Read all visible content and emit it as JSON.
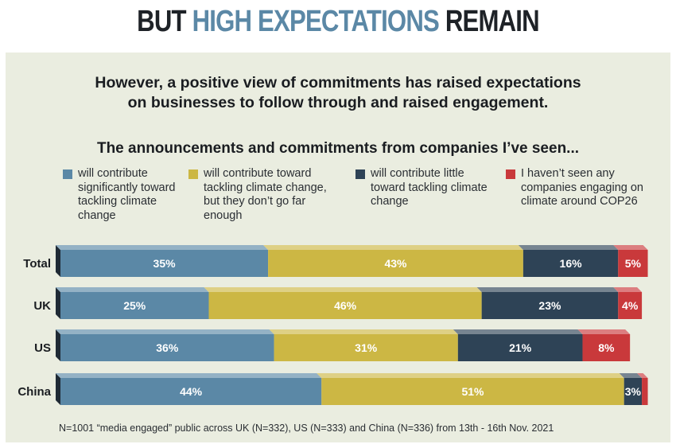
{
  "header": {
    "title_part1": "BUT",
    "title_highlight": "HIGH EXPECTATIONS",
    "title_part2": "REMAIN"
  },
  "subtitle_line1": "However, a positive view of commitments has raised expectations",
  "subtitle_line2": "on businesses to follow through and raised engagement.",
  "question": "The announcements and commitments from companies I’ve seen...",
  "colors": {
    "significant": "#5b88a6",
    "not_far_enough": "#ccb744",
    "little": "#2e4356",
    "not_seen": "#c9393b",
    "panel": "#eaede0"
  },
  "legend": [
    {
      "label": "will contribute significantly toward tackling climate change",
      "color": "#5b88a6"
    },
    {
      "label": "will contribute toward tackling climate change, but they don’t go far enough",
      "color": "#ccb744"
    },
    {
      "label": "will contribute little toward tackling climate change",
      "color": "#2e4356"
    },
    {
      "label": "I haven’t seen any companies engaging on climate around COP26",
      "color": "#c9393b"
    }
  ],
  "chart_data": {
    "type": "bar",
    "orientation": "horizontal-stacked",
    "categories": [
      "Total",
      "UK",
      "US",
      "China"
    ],
    "series": [
      {
        "name": "will contribute significantly toward tackling climate change",
        "values": [
          35,
          25,
          36,
          44
        ],
        "labels": [
          "35%",
          "25%",
          "36%",
          "44%"
        ]
      },
      {
        "name": "will contribute toward tackling climate change, but they don’t go far enough",
        "values": [
          43,
          46,
          31,
          51
        ],
        "labels": [
          "43%",
          "46%",
          "31%",
          "51%"
        ]
      },
      {
        "name": "will contribute little toward tackling climate change",
        "values": [
          16,
          23,
          21,
          3
        ],
        "labels": [
          "16%",
          "23%",
          "21%",
          "3%"
        ]
      },
      {
        "name": "I haven’t seen any companies engaging on climate around COP26",
        "values": [
          5,
          4,
          8,
          1
        ],
        "labels": [
          "5%",
          "4%",
          "8%",
          ""
        ]
      }
    ],
    "xlim": [
      0,
      100
    ]
  },
  "footnote": "N=1001 “media engaged” public across UK (N=332), US (N=333) and China (N=336) from 13th - 16th Nov. 2021"
}
